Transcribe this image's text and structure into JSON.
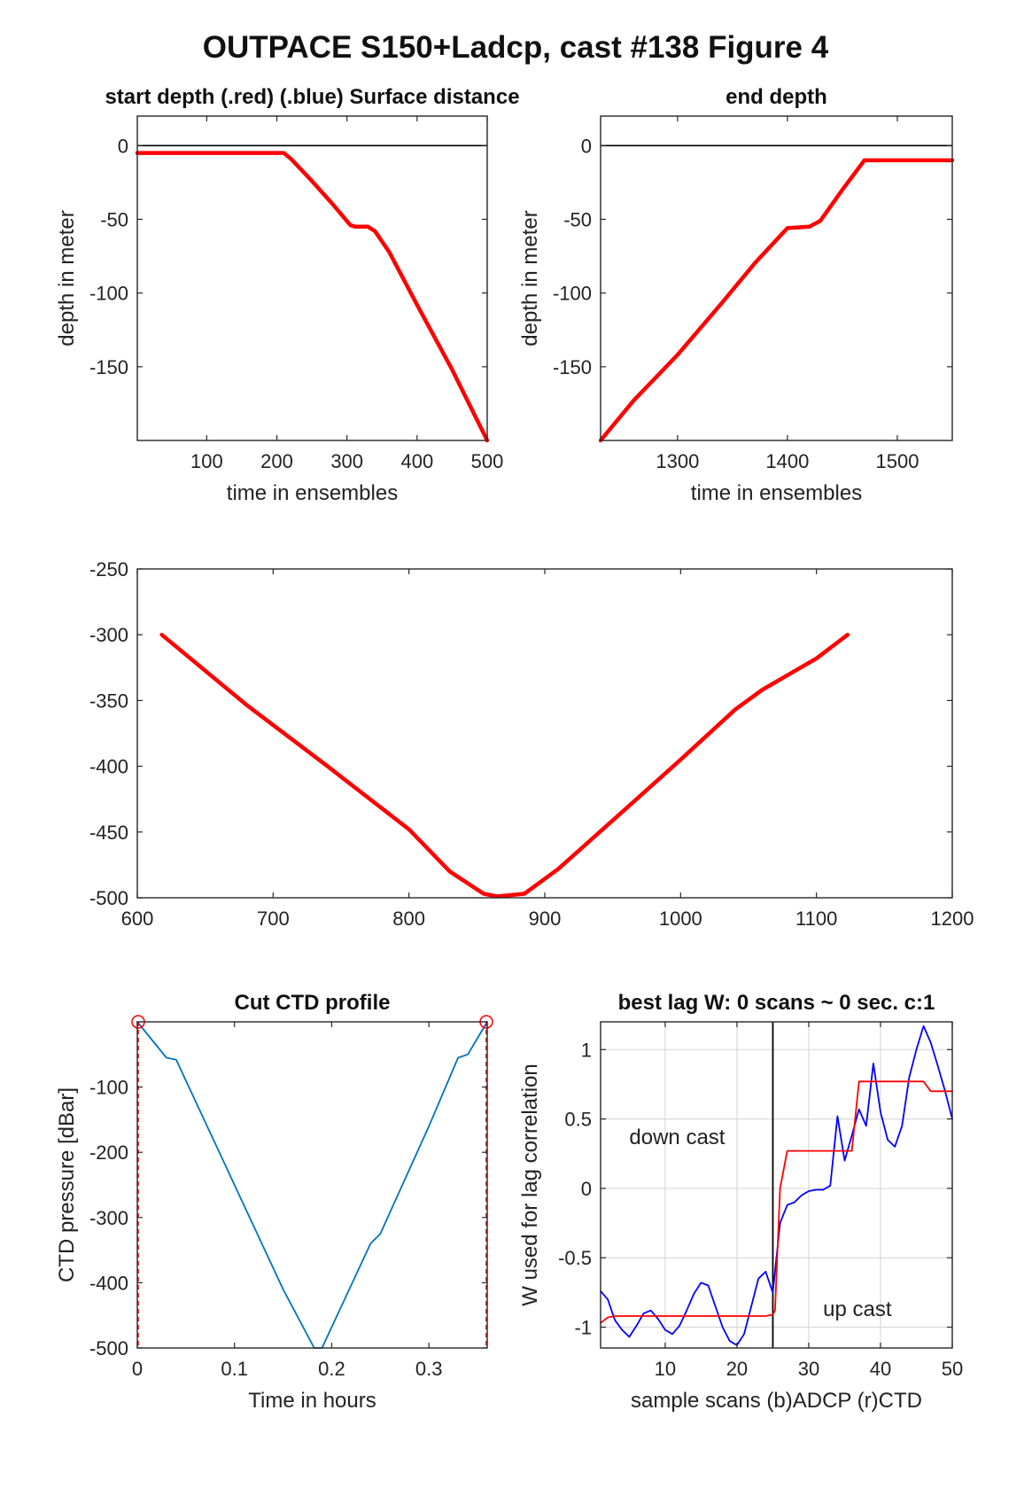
{
  "figure": {
    "title": "OUTPACE S150+Ladcp, cast #138    Figure 4"
  },
  "colors": {
    "red": "#ff0000",
    "blue": "#0000ff",
    "ctd": "#0072bd",
    "axis": "#262626",
    "grid": "#d9d9d9",
    "zero": "#000000"
  },
  "chart_data": [
    {
      "id": "start_depth",
      "type": "line",
      "title": "start depth (.red) (.blue) Surface distance",
      "xlabel": "time in ensembles",
      "ylabel": "depth in meter",
      "xlim": [
        1,
        500
      ],
      "ylim": [
        -200,
        20
      ],
      "xticks": [
        100,
        200,
        300,
        400,
        500
      ],
      "yticks": [
        0,
        -50,
        -100,
        -150
      ],
      "grid": false,
      "zero_line": true,
      "series": [
        {
          "color": "red",
          "x": [
            1,
            100,
            210,
            220,
            250,
            280,
            305,
            312,
            330,
            340,
            360,
            400,
            450,
            500
          ],
          "y": [
            -5,
            -5,
            -5,
            -9,
            -24,
            -40,
            -54,
            -55,
            -55,
            -58,
            -72,
            -108,
            -152,
            -200
          ]
        }
      ]
    },
    {
      "id": "end_depth",
      "type": "line",
      "title": "end depth",
      "xlabel": "time in ensembles",
      "ylabel": "depth in meter",
      "xlim": [
        1230,
        1550
      ],
      "ylim": [
        -200,
        20
      ],
      "xticks": [
        1300,
        1400,
        1500
      ],
      "yticks": [
        0,
        -50,
        -100,
        -150
      ],
      "grid": false,
      "zero_line": true,
      "series": [
        {
          "color": "red",
          "x": [
            1230,
            1260,
            1300,
            1340,
            1370,
            1390,
            1400,
            1420,
            1430,
            1450,
            1470,
            1500,
            1550
          ],
          "y": [
            -200,
            -173,
            -142,
            -107,
            -80,
            -64,
            -56,
            -55,
            -51,
            -30,
            -10,
            -10,
            -10
          ]
        }
      ]
    },
    {
      "id": "middle",
      "type": "line",
      "title": "",
      "xlabel": "",
      "ylabel": "",
      "xlim": [
        600,
        1200
      ],
      "ylim": [
        -500,
        -250
      ],
      "xticks": [
        600,
        700,
        800,
        900,
        1000,
        1100,
        1200
      ],
      "yticks": [
        -250,
        -300,
        -350,
        -400,
        -450,
        -500
      ],
      "grid": false,
      "zero_line": false,
      "series": [
        {
          "color": "red",
          "x": [
            618,
            680,
            740,
            800,
            830,
            855,
            865,
            885,
            910,
            960,
            1000,
            1040,
            1060,
            1100,
            1123
          ],
          "y": [
            -300,
            -353,
            -400,
            -448,
            -480,
            -497,
            -499,
            -497,
            -478,
            -432,
            -395,
            -357,
            -342,
            -318,
            -300
          ]
        }
      ]
    },
    {
      "id": "cut_ctd",
      "type": "line",
      "title": "Cut CTD profile",
      "xlabel": "Time in hours",
      "ylabel": "CTD pressure [dBar]",
      "xlim": [
        0,
        0.36
      ],
      "ylim": [
        -500,
        0
      ],
      "xticks": [
        0,
        0.1,
        0.2,
        0.3
      ],
      "yticks": [
        -100,
        -200,
        -300,
        -400,
        -500
      ],
      "grid": false,
      "zero_line": false,
      "cut_marks": true,
      "series": [
        {
          "color": "ctd",
          "x": [
            0,
            0.03,
            0.04,
            0.1,
            0.15,
            0.182,
            0.19,
            0.24,
            0.25,
            0.3,
            0.33,
            0.34,
            0.36
          ],
          "y": [
            0,
            -55,
            -58,
            -250,
            -410,
            -500,
            -500,
            -340,
            -325,
            -160,
            -55,
            -50,
            0
          ]
        }
      ]
    },
    {
      "id": "best_lag",
      "type": "line",
      "title": "best lag W: 0 scans ~ 0 sec.  c:1",
      "xlabel": "sample scans (b)ADCP (r)CTD",
      "ylabel": "W used for lag correlation",
      "xlim": [
        1,
        50
      ],
      "ylim": [
        -1.15,
        1.2
      ],
      "xticks": [
        10,
        20,
        30,
        40,
        50
      ],
      "yticks": [
        1,
        0.5,
        0,
        -0.5,
        -1
      ],
      "grid": true,
      "zero_line": false,
      "vline_x": 25,
      "annotations": [
        {
          "text": "down cast",
          "x": 5,
          "y": 0.32
        },
        {
          "text": "up cast",
          "x": 32,
          "y": -0.92
        }
      ],
      "series": [
        {
          "color": "blue",
          "x": [
            1,
            2,
            3,
            4,
            5,
            6,
            7,
            8,
            9,
            10,
            11,
            12,
            13,
            14,
            15,
            16,
            17,
            18,
            19,
            20,
            21,
            22,
            23,
            24,
            25,
            26,
            27,
            28,
            29,
            30,
            31,
            32,
            33,
            34,
            35,
            36,
            37,
            38,
            39,
            40,
            41,
            42,
            43,
            44,
            45,
            46,
            47,
            48,
            49,
            50
          ],
          "y": [
            -0.74,
            -0.8,
            -0.95,
            -1.02,
            -1.07,
            -0.99,
            -0.9,
            -0.88,
            -0.94,
            -1.02,
            -1.05,
            -0.99,
            -0.88,
            -0.76,
            -0.68,
            -0.7,
            -0.85,
            -1.0,
            -1.1,
            -1.13,
            -1.05,
            -0.85,
            -0.65,
            -0.6,
            -0.75,
            -0.25,
            -0.12,
            -0.1,
            -0.05,
            -0.02,
            -0.01,
            -0.01,
            0.02,
            0.52,
            0.2,
            0.38,
            0.57,
            0.45,
            0.9,
            0.55,
            0.35,
            0.3,
            0.45,
            0.8,
            1.0,
            1.17,
            1.05,
            0.88,
            0.7,
            0.5
          ]
        },
        {
          "color": "red",
          "x": [
            1,
            2,
            3,
            24,
            25,
            25.3,
            26,
            27,
            28,
            35,
            36,
            37,
            38,
            39,
            46,
            47,
            48,
            49,
            50
          ],
          "y": [
            -0.97,
            -0.93,
            -0.92,
            -0.92,
            -0.91,
            -0.88,
            0.0,
            0.27,
            0.27,
            0.27,
            0.27,
            0.77,
            0.77,
            0.77,
            0.77,
            0.7,
            0.7,
            0.7,
            0.7
          ]
        }
      ]
    }
  ]
}
